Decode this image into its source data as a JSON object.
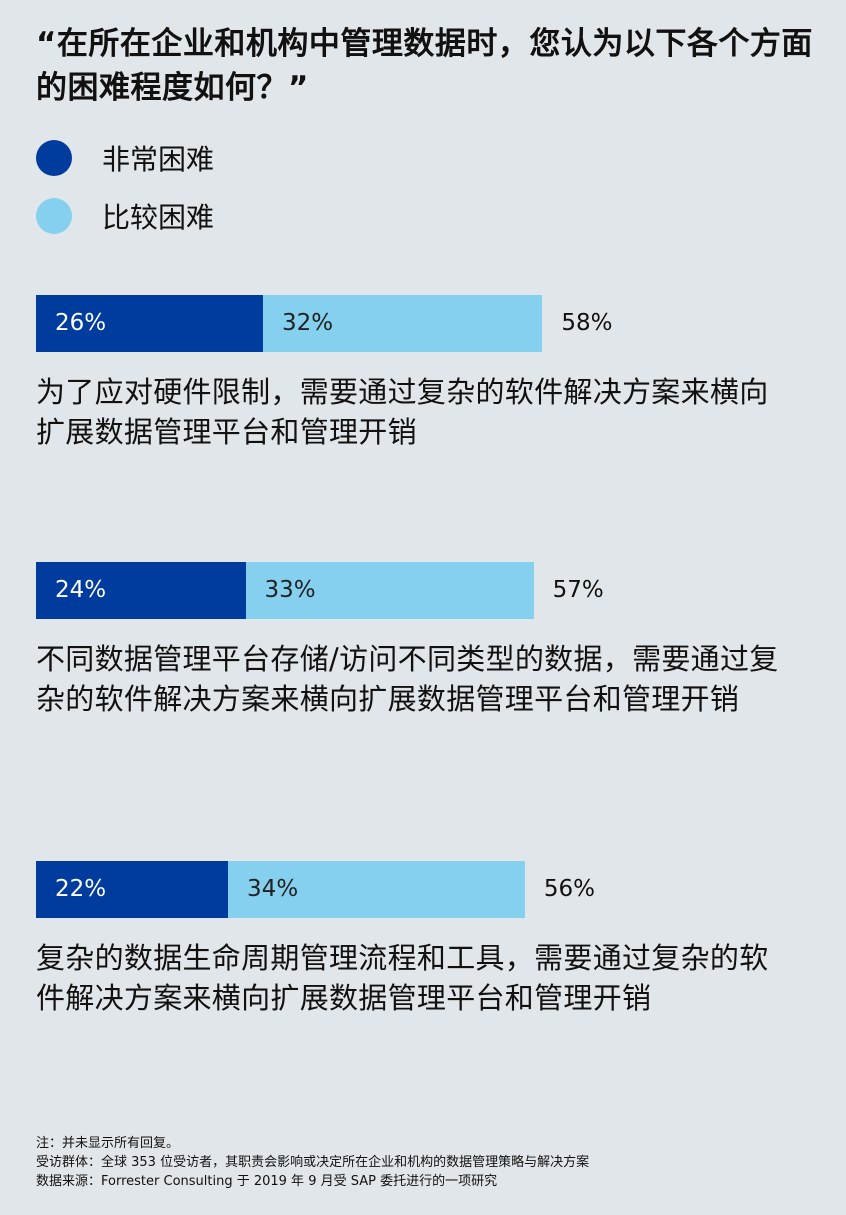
{
  "chart_data": {
    "type": "bar",
    "orientation": "horizontal",
    "stacked": true,
    "title": "“在所在企业和机构中管理数据时，您认为以下各个方面的困难程度如何？”",
    "legend_placement": "top-left",
    "series": [
      {
        "name": "非常困难",
        "color": "#003c9e",
        "values": [
          26,
          24,
          22
        ]
      },
      {
        "name": "比较困难",
        "color": "#85cfef",
        "values": [
          32,
          33,
          34
        ]
      }
    ],
    "totals": [
      58,
      57,
      56
    ],
    "categories": [
      "为了应对硬件限制，需要通过复杂的软件解决方案来横向扩展数据管理平台和管理开销",
      "不同数据管理平台存储/访问不同类型的数据，需要通过复杂的软件解决方案来横向扩展数据管理平台和管理开销",
      "复杂的数据生命周期管理流程和工具，需要通过复杂的软件解决方案来横向扩展数据管理平台和管理开销"
    ],
    "value_format": "percent",
    "grid": false
  },
  "footer": {
    "note": "注：并未显示所有回复。",
    "sample": "受访群体：全球 353 位受访者，其职责会影响或决定所在企业和机构的数据管理策略与解决方案",
    "source": "数据来源：Forrester Consulting 于 2019 年 9 月受 SAP 委托进行的一项研究"
  }
}
